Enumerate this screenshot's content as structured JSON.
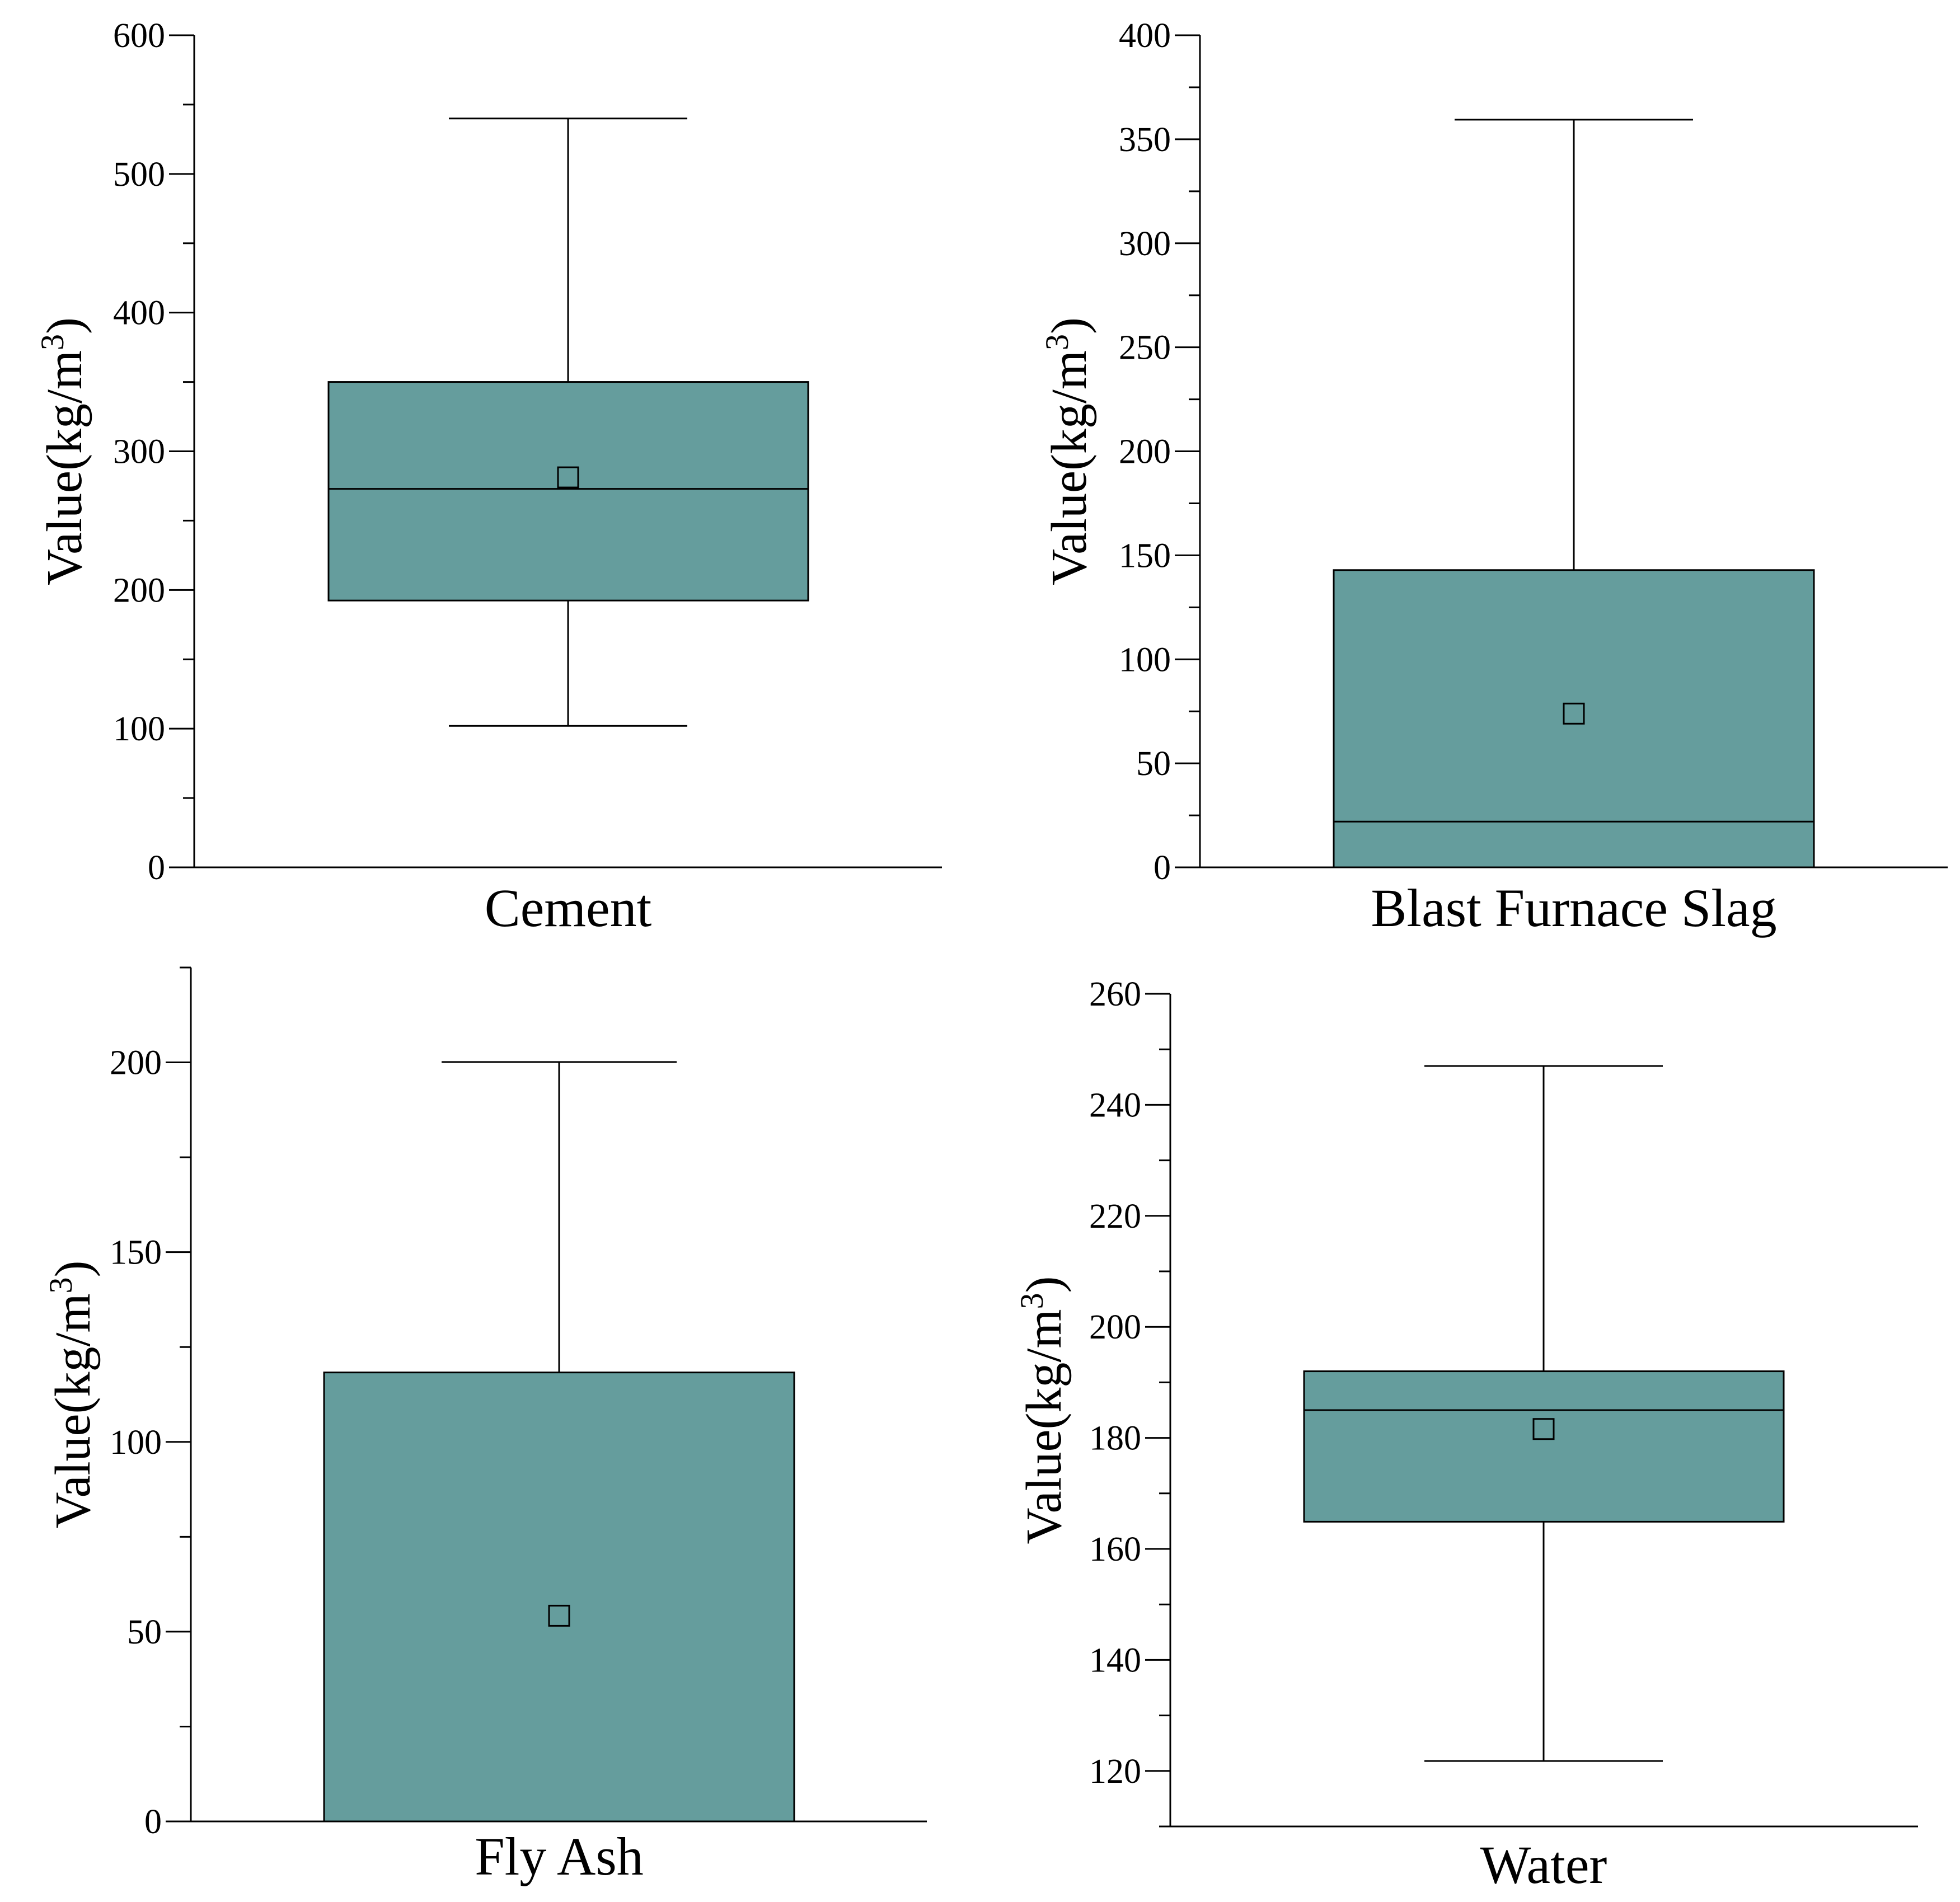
{
  "chart_data": [
    {
      "type": "box",
      "category": "Cement",
      "xlabel": "Cement",
      "ylabel": "Value(kg/m",
      "ylabel_sup": "3",
      "ylabel_end": ")",
      "ylim": [
        0,
        600
      ],
      "ticks": [
        0,
        100,
        200,
        300,
        400,
        500,
        600
      ],
      "tick_labels": [
        "0",
        "100",
        "200",
        "300",
        "400",
        "500",
        "600"
      ],
      "minor_step": 50,
      "whisker_low": 102,
      "q1": 192.4,
      "median": 272.9,
      "q3": 350,
      "whisker_high": 540,
      "mean": 281.2,
      "box_color": "#659d9d"
    },
    {
      "type": "box",
      "category": "Blast Furnace Slag",
      "xlabel": "Blast Furnace Slag",
      "ylabel": "Value(kg/m",
      "ylabel_sup": "3",
      "ylabel_end": ")",
      "ylim": [
        0,
        400
      ],
      "ticks": [
        0,
        50,
        100,
        150,
        200,
        250,
        300,
        350,
        400
      ],
      "tick_labels": [
        "0",
        "50",
        "100",
        "150",
        "200",
        "250",
        "300",
        "350",
        "400"
      ],
      "minor_step": 25,
      "whisker_low": 0,
      "q1": 0,
      "median": 22,
      "q3": 142.9,
      "whisker_high": 359.4,
      "mean": 73.9,
      "box_color": "#659d9d"
    },
    {
      "type": "box",
      "category": "Fly Ash",
      "xlabel": "Fly Ash",
      "ylabel": "Value(kg/m",
      "ylabel_sup": "3",
      "ylabel_end": ")",
      "ylim": [
        0,
        225
      ],
      "ticks": [
        0,
        50,
        100,
        150,
        200
      ],
      "tick_labels": [
        "0",
        "50",
        "100",
        "150",
        "200"
      ],
      "minor_step": 25,
      "whisker_low": 0,
      "q1": 0,
      "median": 0,
      "q3": 118.3,
      "whisker_high": 200.1,
      "mean": 54.2,
      "box_color": "#659d9d"
    },
    {
      "type": "box",
      "category": "Water",
      "xlabel": "Water",
      "ylabel": "Value(kg/m",
      "ylabel_sup": "3",
      "ylabel_end": ")",
      "ylim": [
        110,
        260
      ],
      "ticks": [
        120,
        140,
        160,
        180,
        200,
        220,
        240,
        260
      ],
      "tick_labels": [
        "120",
        "140",
        "160",
        "180",
        "200",
        "220",
        "240",
        "260"
      ],
      "minor_step": 10,
      "whisker_low": 121.8,
      "q1": 164.9,
      "median": 185,
      "q3": 192,
      "whisker_high": 247,
      "mean": 181.6,
      "box_color": "#659d9d"
    }
  ]
}
